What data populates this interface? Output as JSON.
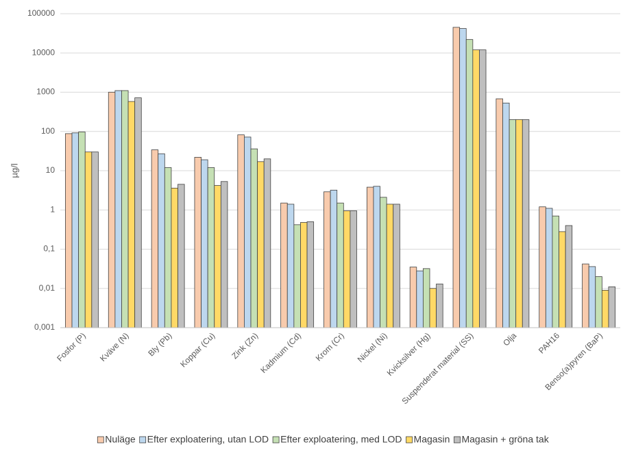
{
  "chart_data": {
    "type": "bar",
    "y_label": "µg/l",
    "log_scale": true,
    "grid": true,
    "legend": "bottom",
    "categories": [
      "Fosfor (P)",
      "Kväve (N)",
      "Bly (Pb)",
      "Koppar (Cu)",
      "Zink (Zn)",
      "Kadmium (Cd)",
      "Krom (Cr)",
      "Nickel (Ni)",
      "Kvicksilver (Hg)",
      "Suspenderat material (SS)",
      "Olja",
      "PAH16",
      "Benso(a)pyren (BaP)"
    ],
    "series": [
      {
        "name": "Nuläge",
        "color": "#f8cbad",
        "values": [
          88,
          1000,
          34,
          22,
          82,
          1.5,
          2.9,
          3.8,
          0.035,
          45000,
          680,
          1.2,
          0.042
        ]
      },
      {
        "name": "Efter exploatering, utan LOD",
        "color": "#bdd7ee",
        "values": [
          92,
          1100,
          27,
          19,
          72,
          1.4,
          3.2,
          4.0,
          0.028,
          42000,
          530,
          1.1,
          0.036
        ]
      },
      {
        "name": "Efter exploatering, med LOD",
        "color": "#c5e0b4",
        "values": [
          97,
          1100,
          12,
          12,
          36,
          0.42,
          1.5,
          2.1,
          0.032,
          22000,
          200,
          0.7,
          0.02
        ]
      },
      {
        "name": "Magasin",
        "color": "#ffd966",
        "values": [
          30,
          580,
          3.6,
          4.2,
          17,
          0.48,
          0.95,
          1.4,
          0.01,
          12000,
          200,
          0.28,
          0.009
        ]
      },
      {
        "name": "Magasin + gröna tak",
        "color": "#bfbfbf",
        "values": [
          30,
          720,
          4.5,
          5.3,
          20,
          0.5,
          0.95,
          1.4,
          0.013,
          12000,
          200,
          0.4,
          0.011
        ]
      }
    ],
    "ylim": [
      0.001,
      100000
    ],
    "yticks": [
      {
        "value": 0.001,
        "label": "0,001"
      },
      {
        "value": 0.01,
        "label": "0,01"
      },
      {
        "value": 0.1,
        "label": "0,1"
      },
      1,
      10,
      100,
      1000,
      10000,
      100000
    ]
  }
}
